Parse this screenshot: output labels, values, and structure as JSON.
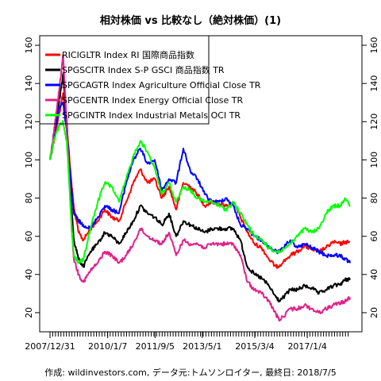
{
  "chart_data": {
    "type": "line",
    "title": "相対株価 vs 比較なし（絶対株価）(1)",
    "caption": "作成: wildinvestors.com, データ元:トムソンロイター, 最終日: 2018/7/5",
    "xlabel": "",
    "ylabel": "",
    "x_tick_labels": [
      "2007/12/31",
      "2010/1/7",
      "2011/9/5",
      "2013/5/1",
      "2015/3/4",
      "2017/1/4"
    ],
    "x_tick_dates": [
      "2007-12-31",
      "2010-01-07",
      "2011-09-05",
      "2013-05-01",
      "2015-03-04",
      "2017-01-04"
    ],
    "x_range": [
      "2007-12-31",
      "2018-07-05"
    ],
    "ylim": [
      10,
      165
    ],
    "y_ticks": [
      20,
      40,
      60,
      80,
      100,
      120,
      140,
      160
    ],
    "grid": false,
    "legend_position": "top-left",
    "x": [
      "2007-12-31",
      "2008-03-01",
      "2008-05-01",
      "2008-06-15",
      "2008-08-01",
      "2008-10-01",
      "2008-11-01",
      "2008-12-31",
      "2009-03-01",
      "2009-06-01",
      "2009-09-01",
      "2009-12-01",
      "2010-03-01",
      "2010-06-01",
      "2010-09-01",
      "2010-12-01",
      "2011-03-01",
      "2011-06-01",
      "2011-09-01",
      "2011-12-01",
      "2012-03-01",
      "2012-06-01",
      "2012-09-01",
      "2012-12-01",
      "2013-03-01",
      "2013-06-01",
      "2013-09-01",
      "2013-12-01",
      "2014-03-01",
      "2014-06-01",
      "2014-09-01",
      "2014-12-01",
      "2015-03-01",
      "2015-06-01",
      "2015-09-01",
      "2015-12-01",
      "2016-01-20",
      "2016-06-01",
      "2016-09-01",
      "2016-12-01",
      "2017-03-01",
      "2017-06-01",
      "2017-09-01",
      "2017-12-01",
      "2018-03-01",
      "2018-05-01",
      "2018-07-05"
    ],
    "series": [
      {
        "name": "RICIGLTR Index RI 国際商品指数",
        "color": "#ff0000",
        "values": [
          100,
          112,
          125,
          135,
          118,
          88,
          75,
          62,
          58,
          64,
          68,
          74,
          70,
          68,
          78,
          88,
          95,
          88,
          90,
          80,
          86,
          74,
          88,
          86,
          82,
          76,
          78,
          77,
          76,
          78,
          70,
          62,
          56,
          54,
          48,
          44,
          45,
          50,
          52,
          55,
          53,
          52,
          54,
          57,
          56,
          57,
          57
        ]
      },
      {
        "name": "SPGSCITR Index S-P GSCI 商品指数 TR",
        "color": "#000000",
        "values": [
          100,
          115,
          132,
          145,
          120,
          75,
          58,
          48,
          44,
          52,
          56,
          62,
          60,
          56,
          62,
          68,
          76,
          72,
          70,
          66,
          72,
          60,
          68,
          66,
          64,
          62,
          64,
          64,
          64,
          64,
          58,
          44,
          40,
          38,
          34,
          28,
          26,
          32,
          32,
          34,
          33,
          30,
          32,
          34,
          35,
          37,
          38
        ]
      },
      {
        "name": "SPGCAGTR Index Agriculture Official Close TR",
        "color": "#0000ff",
        "values": [
          100,
          115,
          128,
          130,
          115,
          84,
          72,
          68,
          66,
          64,
          70,
          76,
          74,
          72,
          88,
          100,
          106,
          98,
          100,
          84,
          90,
          88,
          106,
          94,
          90,
          82,
          78,
          78,
          80,
          76,
          66,
          64,
          60,
          58,
          54,
          52,
          52,
          58,
          54,
          56,
          54,
          52,
          50,
          50,
          50,
          48,
          46
        ]
      },
      {
        "name": "SPGCENTR Index Energy Official Close TR",
        "color": "#e0218a",
        "values": [
          100,
          118,
          138,
          155,
          118,
          65,
          48,
          40,
          36,
          42,
          46,
          52,
          50,
          46,
          50,
          56,
          64,
          60,
          58,
          56,
          62,
          50,
          58,
          56,
          56,
          54,
          56,
          56,
          56,
          56,
          50,
          36,
          32,
          30,
          26,
          19,
          16,
          22,
          22,
          24,
          22,
          20,
          22,
          24,
          25,
          26,
          28
        ]
      },
      {
        "name": "SPGCINTR Index Industrial Metals OCI TR",
        "color": "#00ff00",
        "values": [
          100,
          112,
          118,
          120,
          110,
          66,
          50,
          46,
          48,
          64,
          78,
          88,
          86,
          78,
          90,
          102,
          110,
          104,
          96,
          82,
          88,
          78,
          86,
          84,
          80,
          78,
          78,
          76,
          74,
          78,
          72,
          66,
          60,
          58,
          54,
          52,
          52,
          56,
          60,
          64,
          62,
          64,
          72,
          76,
          76,
          80,
          76
        ]
      }
    ]
  }
}
